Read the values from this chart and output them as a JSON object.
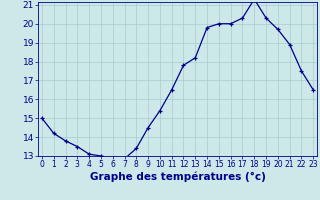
{
  "hours": [
    0,
    1,
    2,
    3,
    4,
    5,
    6,
    7,
    8,
    9,
    10,
    11,
    12,
    13,
    14,
    15,
    16,
    17,
    18,
    19,
    20,
    21,
    22,
    23
  ],
  "temperatures": [
    15.0,
    14.2,
    13.8,
    13.5,
    13.1,
    13.0,
    12.9,
    12.85,
    13.4,
    14.5,
    15.4,
    16.5,
    17.8,
    18.2,
    19.8,
    20.0,
    20.0,
    20.3,
    21.3,
    20.3,
    19.7,
    18.9,
    17.5,
    16.5
  ],
  "xlabel": "Graphe des températures (°c)",
  "ylim": [
    13,
    21
  ],
  "xlim": [
    -0.3,
    23.3
  ],
  "yticks": [
    13,
    14,
    15,
    16,
    17,
    18,
    19,
    20,
    21
  ],
  "xticks": [
    0,
    1,
    2,
    3,
    4,
    5,
    6,
    7,
    8,
    9,
    10,
    11,
    12,
    13,
    14,
    15,
    16,
    17,
    18,
    19,
    20,
    21,
    22,
    23
  ],
  "line_color": "#00008B",
  "marker_color": "#00008B",
  "bg_color": "#cce8e8",
  "grid_color": "#aacccc",
  "axis_label_color": "#00008B",
  "tick_color": "#00008B",
  "xlabel_fontsize": 7.5,
  "ytick_fontsize": 6.5,
  "xtick_fontsize": 5.5
}
